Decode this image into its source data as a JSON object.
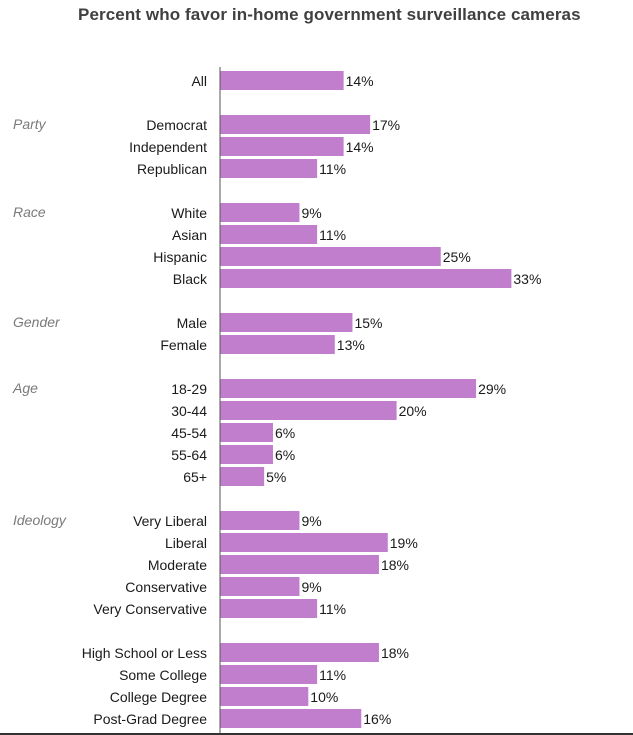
{
  "chart_data": {
    "type": "bar",
    "orientation": "horizontal",
    "title": "Percent who favor in-home government surveillance cameras",
    "value_suffix": "%",
    "xlim": [
      0,
      40
    ],
    "bar_color": "#c17ecd",
    "groups": [
      {
        "name": "",
        "categories": [
          "All"
        ],
        "values": [
          14
        ]
      },
      {
        "name": "Party",
        "categories": [
          "Democrat",
          "Independent",
          "Republican"
        ],
        "values": [
          17,
          14,
          11
        ]
      },
      {
        "name": "Race",
        "categories": [
          "White",
          "Asian",
          "Hispanic",
          "Black"
        ],
        "values": [
          9,
          11,
          25,
          33
        ]
      },
      {
        "name": "Gender",
        "categories": [
          "Male",
          "Female"
        ],
        "values": [
          15,
          13
        ]
      },
      {
        "name": "Age",
        "categories": [
          "18-29",
          "30-44",
          "45-54",
          "55-64",
          "65+"
        ],
        "values": [
          29,
          20,
          6,
          6,
          5
        ]
      },
      {
        "name": "Ideology",
        "categories": [
          "Very Liberal",
          "Liberal",
          "Moderate",
          "Conservative",
          "Very Conservative"
        ],
        "values": [
          9,
          19,
          18,
          9,
          11
        ]
      },
      {
        "name": "",
        "categories": [
          "High School or Less",
          "Some College",
          "College Degree",
          "Post-Grad Degree"
        ],
        "values": [
          18,
          11,
          10,
          16
        ]
      }
    ]
  }
}
